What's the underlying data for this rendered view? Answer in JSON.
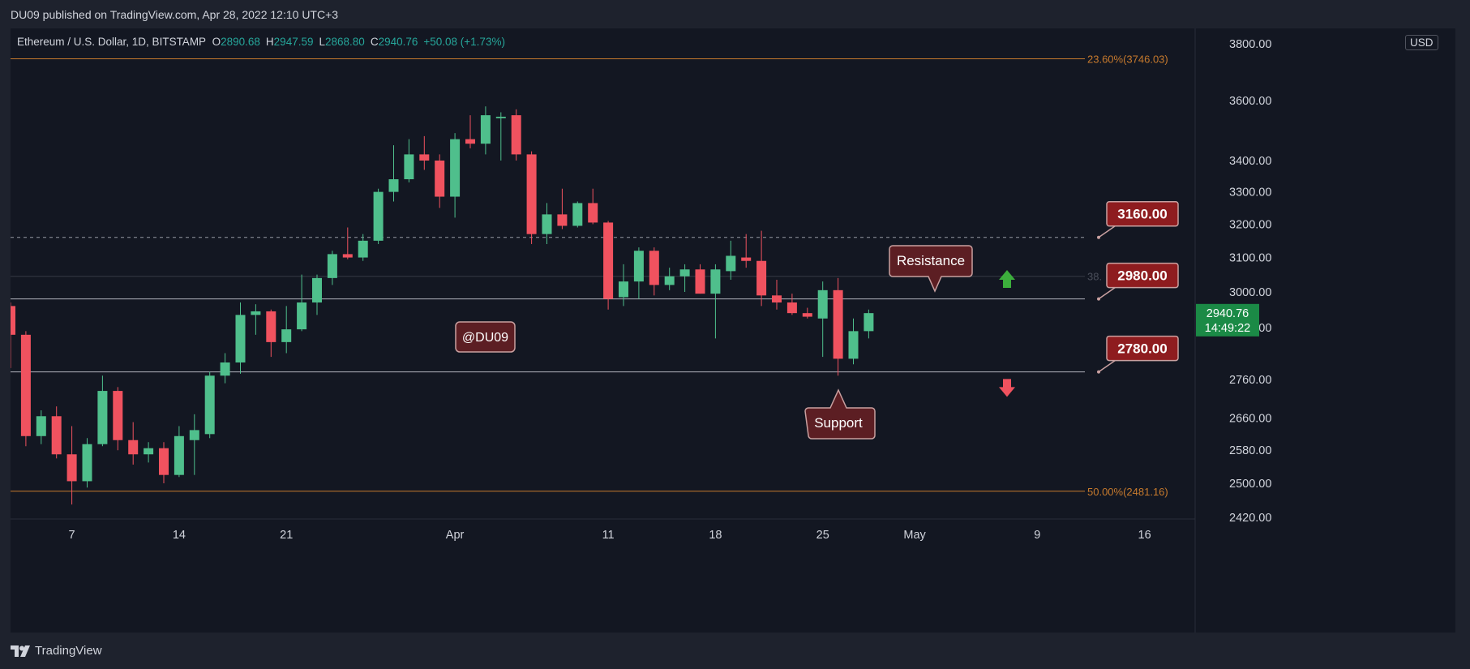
{
  "publisher": {
    "text": "DU09 published on TradingView.com, Apr 28, 2022 12:10 UTC+3"
  },
  "legend": {
    "symbol": "Ethereum / U.S. Dollar, 1D, BITSTAMP",
    "open_label": "O",
    "open": "2890.68",
    "high_label": "H",
    "high": "2947.59",
    "low_label": "L",
    "low": "2868.80",
    "close_label": "C",
    "close": "2940.76",
    "change": "+50.08 (+1.73%)"
  },
  "currency": "USD",
  "footer": {
    "brand": "TradingView"
  },
  "colors": {
    "up": "#4fbf8c",
    "down": "#f0525f",
    "fib": "#c77a2d",
    "callout_fill": "#5c1e23",
    "callout_border": "#c9a0a0",
    "price_badge": "#1b8a46"
  },
  "chart_data": {
    "type": "candlestick",
    "scale": "logarithmic",
    "ylim": [
      2400,
      3850
    ],
    "y_ticks": [
      {
        "value": 3800,
        "label": "3800.00"
      },
      {
        "value": 3600,
        "label": "3600.00"
      },
      {
        "value": 3400,
        "label": "3400.00"
      },
      {
        "value": 3300,
        "label": "3300.00"
      },
      {
        "value": 3200,
        "label": "3200.00"
      },
      {
        "value": 3100,
        "label": "3100.00"
      },
      {
        "value": 3000,
        "label": "3000.00"
      },
      {
        "value": 2900,
        "label": "2900.00"
      },
      {
        "value": 2760,
        "label": "2760.00"
      },
      {
        "value": 2660,
        "label": "2660.00"
      },
      {
        "value": 2580,
        "label": "2580.00"
      },
      {
        "value": 2500,
        "label": "2500.00"
      },
      {
        "value": 2420,
        "label": "2420.00"
      }
    ],
    "x_ticks": [
      {
        "day": 7,
        "label": "7"
      },
      {
        "day": 14,
        "label": "14"
      },
      {
        "day": 21,
        "label": "21"
      },
      {
        "day": 32,
        "label": "Apr"
      },
      {
        "day": 42,
        "label": "11"
      },
      {
        "day": 49,
        "label": "18"
      },
      {
        "day": 56,
        "label": "25"
      },
      {
        "day": 62,
        "label": "May"
      },
      {
        "day": 70,
        "label": "9"
      },
      {
        "day": 77,
        "label": "16"
      }
    ],
    "x_range": [
      3,
      81
    ],
    "candles": [
      {
        "day": 3,
        "o": 2960,
        "h": 2970,
        "l": 2790,
        "c": 2880
      },
      {
        "day": 4,
        "o": 2880,
        "h": 2890,
        "l": 2590,
        "c": 2615
      },
      {
        "day": 5,
        "o": 2615,
        "h": 2680,
        "l": 2595,
        "c": 2665
      },
      {
        "day": 6,
        "o": 2665,
        "h": 2690,
        "l": 2560,
        "c": 2570
      },
      {
        "day": 7,
        "o": 2570,
        "h": 2640,
        "l": 2450,
        "c": 2505
      },
      {
        "day": 8,
        "o": 2505,
        "h": 2610,
        "l": 2490,
        "c": 2595
      },
      {
        "day": 9,
        "o": 2595,
        "h": 2770,
        "l": 2590,
        "c": 2730
      },
      {
        "day": 10,
        "o": 2730,
        "h": 2740,
        "l": 2580,
        "c": 2605
      },
      {
        "day": 11,
        "o": 2605,
        "h": 2650,
        "l": 2545,
        "c": 2570
      },
      {
        "day": 12,
        "o": 2570,
        "h": 2600,
        "l": 2550,
        "c": 2585
      },
      {
        "day": 13,
        "o": 2585,
        "h": 2600,
        "l": 2500,
        "c": 2520
      },
      {
        "day": 14,
        "o": 2520,
        "h": 2640,
        "l": 2515,
        "c": 2615
      },
      {
        "day": 15,
        "o": 2605,
        "h": 2670,
        "l": 2520,
        "c": 2630
      },
      {
        "day": 16,
        "o": 2620,
        "h": 2780,
        "l": 2610,
        "c": 2770
      },
      {
        "day": 17,
        "o": 2770,
        "h": 2830,
        "l": 2750,
        "c": 2805
      },
      {
        "day": 18,
        "o": 2805,
        "h": 2970,
        "l": 2775,
        "c": 2935
      },
      {
        "day": 19,
        "o": 2935,
        "h": 2965,
        "l": 2880,
        "c": 2945
      },
      {
        "day": 20,
        "o": 2945,
        "h": 2950,
        "l": 2820,
        "c": 2860
      },
      {
        "day": 21,
        "o": 2860,
        "h": 2960,
        "l": 2830,
        "c": 2895
      },
      {
        "day": 22,
        "o": 2895,
        "h": 3050,
        "l": 2890,
        "c": 2970
      },
      {
        "day": 23,
        "o": 2970,
        "h": 3050,
        "l": 2935,
        "c": 3040
      },
      {
        "day": 24,
        "o": 3040,
        "h": 3120,
        "l": 3020,
        "c": 3110
      },
      {
        "day": 25,
        "o": 3110,
        "h": 3190,
        "l": 3095,
        "c": 3100
      },
      {
        "day": 26,
        "o": 3100,
        "h": 3170,
        "l": 3090,
        "c": 3150
      },
      {
        "day": 27,
        "o": 3150,
        "h": 3310,
        "l": 3140,
        "c": 3300
      },
      {
        "day": 28,
        "o": 3300,
        "h": 3450,
        "l": 3270,
        "c": 3340
      },
      {
        "day": 29,
        "o": 3340,
        "h": 3470,
        "l": 3330,
        "c": 3420
      },
      {
        "day": 30,
        "o": 3420,
        "h": 3480,
        "l": 3370,
        "c": 3400
      },
      {
        "day": 31,
        "o": 3400,
        "h": 3420,
        "l": 3250,
        "c": 3285
      },
      {
        "day": 32,
        "o": 3285,
        "h": 3490,
        "l": 3220,
        "c": 3470
      },
      {
        "day": 33,
        "o": 3470,
        "h": 3550,
        "l": 3440,
        "c": 3455
      },
      {
        "day": 34,
        "o": 3455,
        "h": 3580,
        "l": 3420,
        "c": 3550
      },
      {
        "day": 35,
        "o": 3540,
        "h": 3560,
        "l": 3400,
        "c": 3545
      },
      {
        "day": 36,
        "o": 3550,
        "h": 3570,
        "l": 3400,
        "c": 3420
      },
      {
        "day": 37,
        "o": 3420,
        "h": 3430,
        "l": 3140,
        "c": 3170
      },
      {
        "day": 38,
        "o": 3170,
        "h": 3265,
        "l": 3140,
        "c": 3230
      },
      {
        "day": 39,
        "o": 3230,
        "h": 3310,
        "l": 3185,
        "c": 3195
      },
      {
        "day": 40,
        "o": 3195,
        "h": 3270,
        "l": 3190,
        "c": 3265
      },
      {
        "day": 41,
        "o": 3265,
        "h": 3310,
        "l": 3200,
        "c": 3205
      },
      {
        "day": 42,
        "o": 3205,
        "h": 3210,
        "l": 2950,
        "c": 2980
      },
      {
        "day": 43,
        "o": 2985,
        "h": 3080,
        "l": 2960,
        "c": 3030
      },
      {
        "day": 44,
        "o": 3030,
        "h": 3130,
        "l": 2980,
        "c": 3120
      },
      {
        "day": 45,
        "o": 3120,
        "h": 3130,
        "l": 2990,
        "c": 3020
      },
      {
        "day": 46,
        "o": 3020,
        "h": 3070,
        "l": 3005,
        "c": 3045
      },
      {
        "day": 47,
        "o": 3045,
        "h": 3080,
        "l": 3000,
        "c": 3065
      },
      {
        "day": 48,
        "o": 3065,
        "h": 3080,
        "l": 2995,
        "c": 2995
      },
      {
        "day": 49,
        "o": 2995,
        "h": 3080,
        "l": 2870,
        "c": 3065
      },
      {
        "day": 50,
        "o": 3060,
        "h": 3150,
        "l": 3035,
        "c": 3105
      },
      {
        "day": 51,
        "o": 3100,
        "h": 3170,
        "l": 3070,
        "c": 3090
      },
      {
        "day": 52,
        "o": 3090,
        "h": 3180,
        "l": 2960,
        "c": 2990
      },
      {
        "day": 53,
        "o": 2990,
        "h": 3035,
        "l": 2950,
        "c": 2970
      },
      {
        "day": 54,
        "o": 2970,
        "h": 2995,
        "l": 2935,
        "c": 2940
      },
      {
        "day": 55,
        "o": 2940,
        "h": 2955,
        "l": 2925,
        "c": 2930
      },
      {
        "day": 56,
        "o": 2925,
        "h": 3030,
        "l": 2820,
        "c": 3005
      },
      {
        "day": 57,
        "o": 3005,
        "h": 3040,
        "l": 2770,
        "c": 2815
      },
      {
        "day": 58,
        "o": 2815,
        "h": 2925,
        "l": 2800,
        "c": 2890
      },
      {
        "day": 59,
        "o": 2890,
        "h": 2950,
        "l": 2870,
        "c": 2940
      }
    ],
    "levels": [
      {
        "price": 3746.03,
        "style": "fib",
        "label": "23.60%(3746.03)"
      },
      {
        "price": 3160,
        "style": "dashed",
        "label": ""
      },
      {
        "price": 3045,
        "style": "faint",
        "label": "38."
      },
      {
        "price": 2980,
        "style": "solid",
        "label": ""
      },
      {
        "price": 2780,
        "style": "solid",
        "label": ""
      },
      {
        "price": 2481.16,
        "style": "fib",
        "label": "50.00%(2481.16)"
      }
    ],
    "price_tags": [
      {
        "label": "3160.00",
        "price": 3160
      },
      {
        "label": "2980.00",
        "price": 2980
      },
      {
        "label": "2780.00",
        "price": 2780
      }
    ],
    "callouts": {
      "watermark": "@DU09",
      "resistance": "Resistance",
      "support": "Support"
    },
    "current_price": {
      "label": "2940.76",
      "countdown": "14:49:22",
      "price": 2940.76
    },
    "arrows": [
      {
        "direction": "up",
        "price": 3035
      },
      {
        "direction": "down",
        "price": 2740
      }
    ]
  }
}
